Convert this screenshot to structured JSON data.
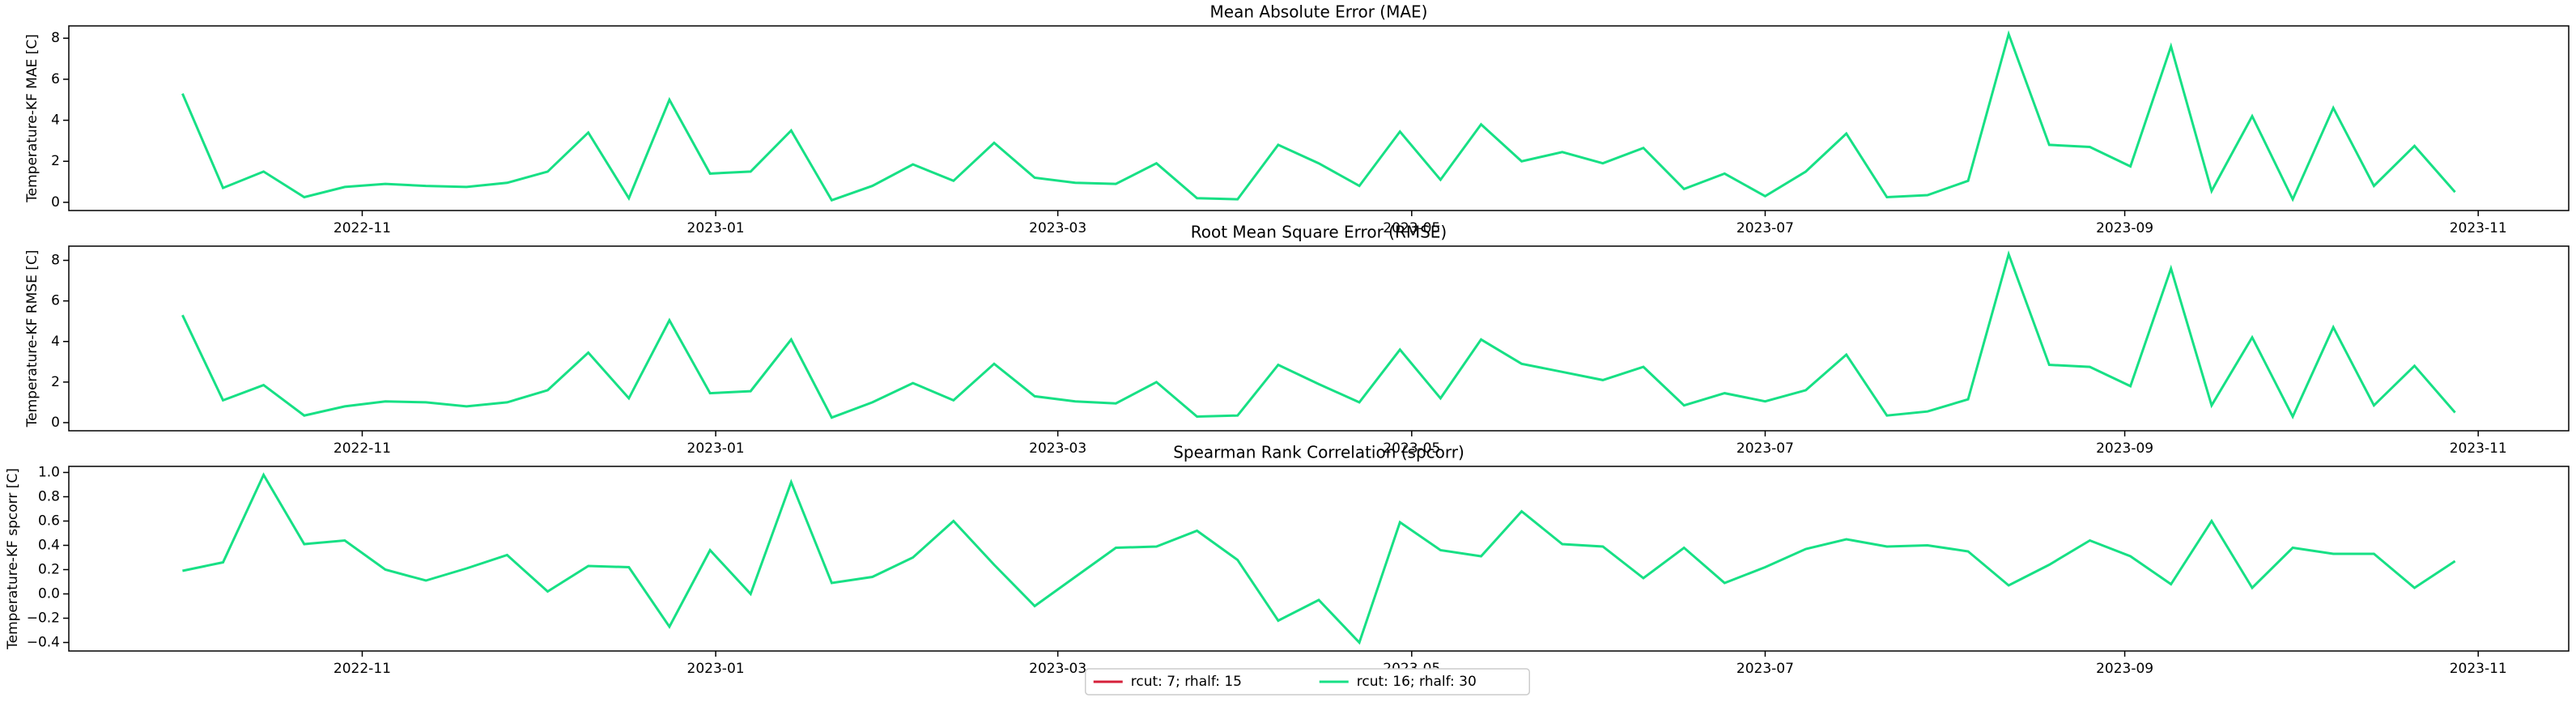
{
  "chart_data": [
    {
      "type": "line",
      "title": "Mean Absolute Error (MAE)",
      "ylabel": "Temperature-KF MAE [C]",
      "categories": [
        null,
        null,
        null,
        null,
        null,
        null,
        null,
        null,
        null,
        null,
        null,
        null,
        null,
        null,
        null,
        null,
        null,
        null,
        null,
        null,
        null,
        null,
        null,
        null,
        null,
        null,
        null,
        null,
        null,
        null,
        null,
        null,
        null,
        null,
        null,
        null,
        null,
        null,
        null,
        null,
        null,
        null,
        null,
        null,
        null,
        null,
        null,
        null,
        null,
        null,
        null,
        null,
        null,
        null,
        null,
        null,
        null
      ],
      "color": "#17e085",
      "values": [
        5.3,
        0.7,
        1.5,
        0.25,
        0.75,
        0.9,
        0.8,
        0.75,
        0.95,
        1.5,
        3.4,
        0.2,
        5.0,
        1.4,
        1.5,
        3.5,
        0.1,
        0.8,
        1.85,
        1.05,
        2.9,
        1.2,
        0.95,
        0.9,
        1.9,
        0.2,
        0.15,
        2.8,
        1.9,
        0.8,
        3.45,
        1.1,
        3.8,
        2.0,
        2.45,
        1.9,
        2.65,
        0.65,
        1.4,
        0.3,
        1.5,
        3.35,
        0.25,
        0.35,
        1.05,
        8.2,
        2.8,
        2.7,
        1.75,
        7.6,
        0.55,
        4.2,
        0.15,
        4.6,
        0.8,
        2.75,
        0.5
      ],
      "xlim": [
        -2.8,
        58.8
      ],
      "xticks": [
        {
          "value": 4.43,
          "label": "2022-11"
        },
        {
          "value": 13.14,
          "label": "2023-01"
        },
        {
          "value": 21.57,
          "label": "2023-03"
        },
        {
          "value": 30.29,
          "label": "2023-05"
        },
        {
          "value": 39.0,
          "label": "2023-07"
        },
        {
          "value": 47.86,
          "label": "2023-09"
        },
        {
          "value": 56.57,
          "label": "2023-11"
        }
      ],
      "ylim": [
        -0.4,
        8.6
      ],
      "yticks": [
        0,
        2,
        4,
        6,
        8
      ]
    },
    {
      "type": "line",
      "title": "Root Mean Square Error (RMSE)",
      "ylabel": "Temperature-KF RMSE [C]",
      "categories": [
        null,
        null,
        null,
        null,
        null,
        null,
        null,
        null,
        null,
        null,
        null,
        null,
        null,
        null,
        null,
        null,
        null,
        null,
        null,
        null,
        null,
        null,
        null,
        null,
        null,
        null,
        null,
        null,
        null,
        null,
        null,
        null,
        null,
        null,
        null,
        null,
        null,
        null,
        null,
        null,
        null,
        null,
        null,
        null,
        null,
        null,
        null,
        null,
        null,
        null,
        null,
        null,
        null,
        null,
        null,
        null,
        null
      ],
      "color": "#17e085",
      "values": [
        5.3,
        1.1,
        1.85,
        0.35,
        0.8,
        1.05,
        1.0,
        0.8,
        1.0,
        1.6,
        3.45,
        1.2,
        5.05,
        1.45,
        1.55,
        4.1,
        0.25,
        1.0,
        1.95,
        1.1,
        2.9,
        1.3,
        1.05,
        0.95,
        2.0,
        0.3,
        0.35,
        2.85,
        1.9,
        1.0,
        3.6,
        1.2,
        4.1,
        2.9,
        2.5,
        2.1,
        2.75,
        0.85,
        1.45,
        1.05,
        1.6,
        3.35,
        0.35,
        0.55,
        1.15,
        8.3,
        2.85,
        2.75,
        1.8,
        7.6,
        0.85,
        4.2,
        0.3,
        4.7,
        0.85,
        2.8,
        0.5
      ],
      "xlim": [
        -2.8,
        58.8
      ],
      "xticks": [
        {
          "value": 4.43,
          "label": "2022-11"
        },
        {
          "value": 13.14,
          "label": "2023-01"
        },
        {
          "value": 21.57,
          "label": "2023-03"
        },
        {
          "value": 30.29,
          "label": "2023-05"
        },
        {
          "value": 39.0,
          "label": "2023-07"
        },
        {
          "value": 47.86,
          "label": "2023-09"
        },
        {
          "value": 56.57,
          "label": "2023-11"
        }
      ],
      "ylim": [
        -0.4,
        8.7
      ],
      "yticks": [
        0,
        2,
        4,
        6,
        8
      ]
    },
    {
      "type": "line",
      "title": "Spearman Rank Correlation (spcorr)",
      "ylabel": "Temperature-KF spcorr [C]",
      "categories": [
        null,
        null,
        null,
        null,
        null,
        null,
        null,
        null,
        null,
        null,
        null,
        null,
        null,
        null,
        null,
        null,
        null,
        null,
        null,
        null,
        null,
        null,
        null,
        null,
        null,
        null,
        null,
        null,
        null,
        null,
        null,
        null,
        null,
        null,
        null,
        null,
        null,
        null,
        null,
        null,
        null,
        null,
        null,
        null,
        null,
        null,
        null,
        null,
        null,
        null,
        null,
        null,
        null,
        null,
        null,
        null,
        null
      ],
      "color": "#17e085",
      "values": [
        0.19,
        0.26,
        0.98,
        0.41,
        0.44,
        0.2,
        0.11,
        0.21,
        0.32,
        0.02,
        0.23,
        0.22,
        -0.27,
        0.36,
        0.0,
        0.92,
        0.09,
        0.14,
        0.3,
        0.6,
        0.24,
        -0.1,
        0.14,
        0.38,
        0.39,
        0.52,
        0.28,
        -0.22,
        -0.05,
        -0.4,
        0.59,
        0.36,
        0.31,
        0.68,
        0.41,
        0.39,
        0.13,
        0.38,
        0.09,
        0.22,
        0.37,
        0.45,
        0.39,
        0.4,
        0.35,
        0.07,
        0.24,
        0.44,
        0.31,
        0.08,
        0.6,
        0.05,
        0.38,
        0.33,
        0.33,
        0.05,
        0.27
      ],
      "xlim": [
        -2.8,
        58.8
      ],
      "xticks": [
        {
          "value": 4.43,
          "label": "2022-11"
        },
        {
          "value": 13.14,
          "label": "2023-01"
        },
        {
          "value": 21.57,
          "label": "2023-03"
        },
        {
          "value": 30.29,
          "label": "2023-05"
        },
        {
          "value": 39.0,
          "label": "2023-07"
        },
        {
          "value": 47.86,
          "label": "2023-09"
        },
        {
          "value": 56.57,
          "label": "2023-11"
        }
      ],
      "ylim": [
        -0.47,
        1.05
      ],
      "yticks": [
        {
          "value": -0.4,
          "label": "−0.4"
        },
        {
          "value": -0.2,
          "label": "−0.2"
        },
        {
          "value": 0,
          "label": "0.0"
        },
        0.2,
        0.4,
        0.6,
        0.8,
        {
          "value": 1,
          "label": "1.0"
        }
      ]
    }
  ],
  "legend": [
    {
      "name": "rcut: 7; rhalf: 15",
      "color": "#d6203a"
    },
    {
      "name": "rcut: 16; rhalf: 30",
      "color": "#17e085"
    }
  ]
}
